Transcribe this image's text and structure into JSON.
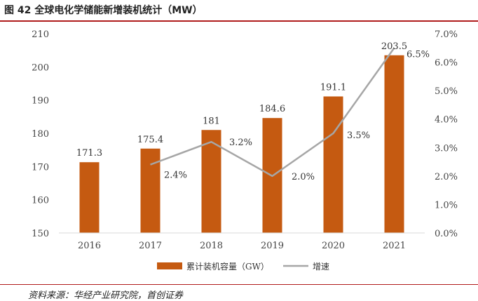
{
  "header": {
    "title": "图 42 全球电化学储能新增装机统计（MW）"
  },
  "footer": {
    "source": "资料来源：华经产业研究院，首创证券"
  },
  "colors": {
    "bar": "#c55a11",
    "line": "#a6a6a6",
    "rule": "#b01c1c",
    "axis": "#d9d9d9"
  },
  "chart_data": {
    "type": "bar",
    "title": "图 42 全球电化学储能新增装机统计（MW）",
    "categories": [
      "2016",
      "2017",
      "2018",
      "2019",
      "2020",
      "2021"
    ],
    "series": [
      {
        "name": "累计装机容量（GW）",
        "type": "bar",
        "axis": "left",
        "values": [
          171.3,
          175.4,
          181,
          184.6,
          191.1,
          203.5
        ],
        "labels": [
          "171.3",
          "175.4",
          "181",
          "184.6",
          "191.1",
          "203.5"
        ]
      },
      {
        "name": "增速",
        "type": "line",
        "axis": "right",
        "values": [
          null,
          2.4,
          3.2,
          2.0,
          3.5,
          6.5
        ],
        "labels": [
          "",
          "2.4%",
          "3.2%",
          "2.0%",
          "3.5%",
          "6.5%"
        ]
      }
    ],
    "y_left": {
      "min": 150,
      "max": 210,
      "ticks": [
        "150",
        "160",
        "170",
        "180",
        "190",
        "200",
        "210"
      ]
    },
    "y_right": {
      "min": 0,
      "max": 7,
      "ticks": [
        "0.0%",
        "1.0%",
        "2.0%",
        "3.0%",
        "4.0%",
        "5.0%",
        "6.0%",
        "7.0%"
      ]
    },
    "grid": false,
    "legend": "bottom"
  }
}
